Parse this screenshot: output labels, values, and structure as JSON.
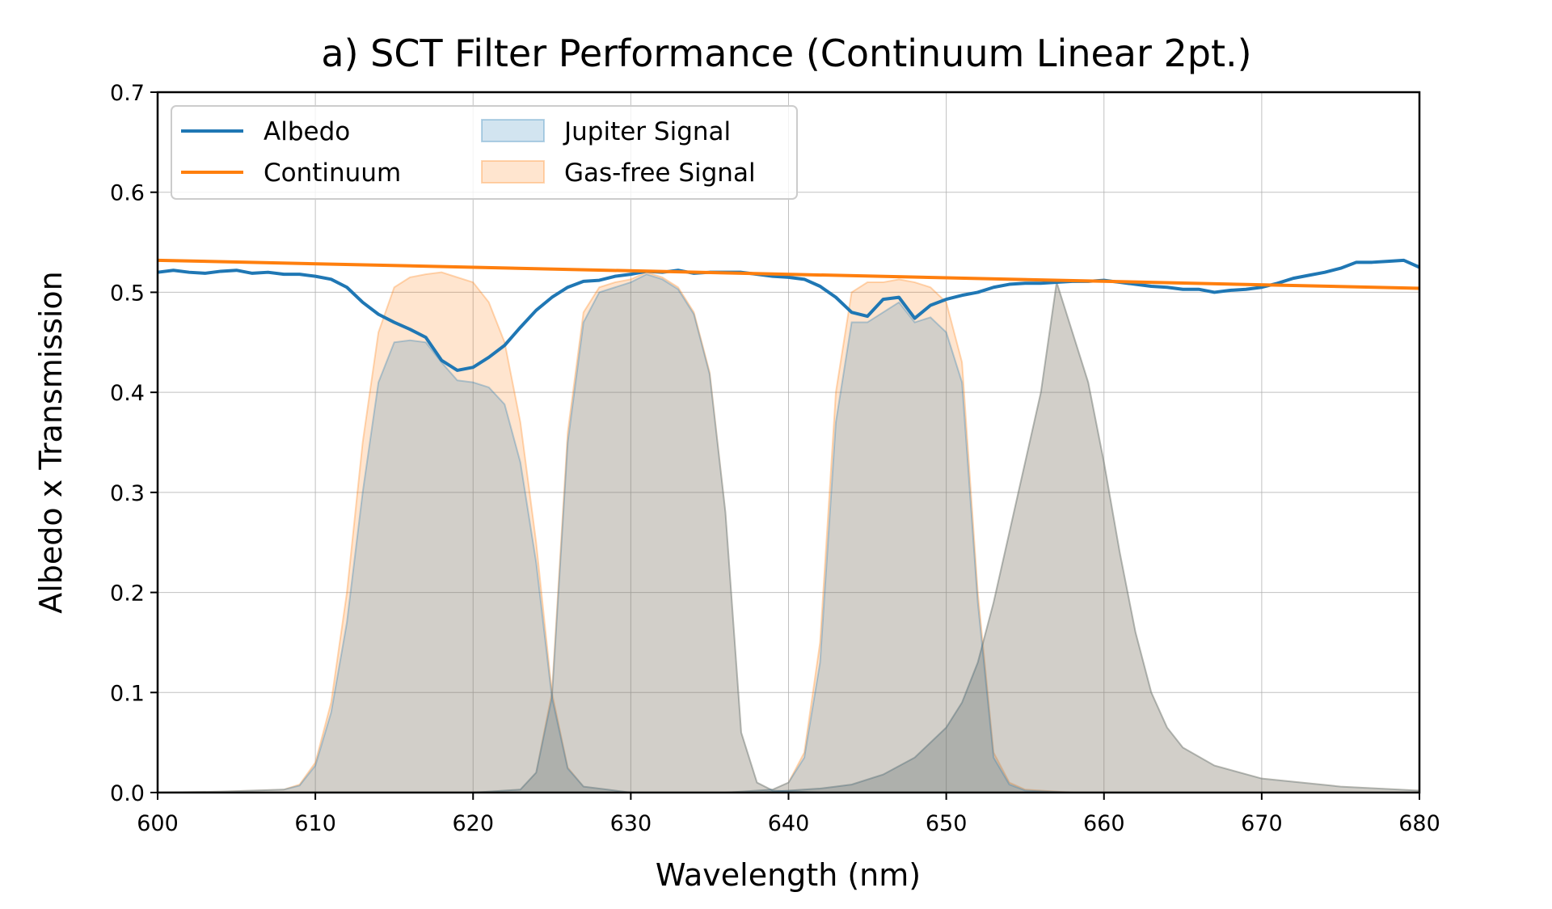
{
  "chart_data": {
    "type": "area",
    "title": "a) SCT Filter Performance (Continuum Linear 2pt.)",
    "xlabel": "Wavelength (nm)",
    "ylabel": "Albedo x Transmission",
    "xlim": [
      600,
      680
    ],
    "ylim": [
      0.0,
      0.7
    ],
    "xticks": [
      600,
      610,
      620,
      630,
      640,
      650,
      660,
      670,
      680
    ],
    "xtick_labels": [
      "600",
      "610",
      "620",
      "630",
      "640",
      "650",
      "660",
      "670",
      "680"
    ],
    "yticks": [
      0.0,
      0.1,
      0.2,
      0.3,
      0.4,
      0.5,
      0.6,
      0.7
    ],
    "ytick_labels": [
      "0.0",
      "0.1",
      "0.2",
      "0.3",
      "0.4",
      "0.5",
      "0.6",
      "0.7"
    ],
    "grid": true,
    "legend_position": "top-left",
    "legend": [
      {
        "label": "Albedo",
        "kind": "line",
        "color": "#1f77b4"
      },
      {
        "label": "Continuum",
        "kind": "line",
        "color": "#ff7f0e"
      },
      {
        "label": "Jupiter Signal",
        "kind": "fill",
        "color": "#1f77b4"
      },
      {
        "label": "Gas-free Signal",
        "kind": "fill",
        "color": "#ff7f0e"
      }
    ],
    "series": [
      {
        "name": "Albedo",
        "kind": "line",
        "color": "#1f77b4",
        "x": [
          600,
          601,
          602,
          603,
          604,
          605,
          606,
          607,
          608,
          609,
          610,
          611,
          612,
          613,
          614,
          615,
          616,
          617,
          618,
          619,
          620,
          621,
          622,
          623,
          624,
          625,
          626,
          627,
          628,
          629,
          630,
          631,
          632,
          633,
          634,
          635,
          636,
          637,
          638,
          639,
          640,
          641,
          642,
          643,
          644,
          645,
          646,
          647,
          648,
          649,
          650,
          651,
          652,
          653,
          654,
          655,
          656,
          657,
          658,
          659,
          660,
          661,
          662,
          663,
          664,
          665,
          666,
          667,
          668,
          669,
          670,
          671,
          672,
          673,
          674,
          675,
          676,
          677,
          678,
          679,
          680
        ],
        "y": [
          0.52,
          0.522,
          0.52,
          0.519,
          0.521,
          0.522,
          0.519,
          0.52,
          0.518,
          0.518,
          0.516,
          0.513,
          0.505,
          0.49,
          0.478,
          0.47,
          0.463,
          0.455,
          0.432,
          0.422,
          0.425,
          0.435,
          0.447,
          0.465,
          0.482,
          0.495,
          0.505,
          0.511,
          0.512,
          0.516,
          0.518,
          0.521,
          0.52,
          0.522,
          0.519,
          0.52,
          0.52,
          0.52,
          0.518,
          0.516,
          0.515,
          0.513,
          0.506,
          0.495,
          0.48,
          0.476,
          0.493,
          0.495,
          0.474,
          0.487,
          0.493,
          0.497,
          0.5,
          0.505,
          0.508,
          0.509,
          0.509,
          0.51,
          0.511,
          0.511,
          0.512,
          0.51,
          0.508,
          0.506,
          0.505,
          0.503,
          0.503,
          0.5,
          0.502,
          0.503,
          0.505,
          0.509,
          0.514,
          0.517,
          0.52,
          0.524,
          0.53,
          0.53,
          0.531,
          0.532,
          0.525
        ]
      },
      {
        "name": "Continuum",
        "kind": "line",
        "color": "#ff7f0e",
        "x": [
          600,
          680
        ],
        "y": [
          0.532,
          0.504
        ]
      },
      {
        "name": "Gas-free Signal",
        "kind": "fill",
        "color": "#ff7f0e",
        "filters": [
          {
            "x": [
              600,
              604,
              608,
              609,
              610,
              611,
              612,
              613,
              614,
              615,
              616,
              617,
              618,
              619,
              620,
              621,
              622,
              623,
              624,
              625,
              626,
              627,
              630
            ],
            "y": [
              0.0,
              0.001,
              0.003,
              0.008,
              0.03,
              0.09,
              0.2,
              0.35,
              0.46,
              0.505,
              0.515,
              0.518,
              0.52,
              0.515,
              0.51,
              0.49,
              0.45,
              0.37,
              0.25,
              0.1,
              0.025,
              0.006,
              0.0
            ]
          },
          {
            "x": [
              620,
              623,
              624,
              625,
              626,
              627,
              628,
              629,
              630,
              631,
              632,
              633,
              634,
              635,
              636,
              637,
              638,
              639,
              642
            ],
            "y": [
              0.0,
              0.003,
              0.02,
              0.1,
              0.36,
              0.48,
              0.505,
              0.51,
              0.513,
              0.52,
              0.515,
              0.505,
              0.48,
              0.42,
              0.28,
              0.06,
              0.01,
              0.002,
              0.0
            ]
          },
          {
            "x": [
              636,
              639,
              640,
              641,
              642,
              643,
              644,
              645,
              646,
              647,
              648,
              649,
              650,
              651,
              652,
              653,
              654,
              655,
              658
            ],
            "y": [
              0.0,
              0.003,
              0.01,
              0.04,
              0.15,
              0.4,
              0.5,
              0.51,
              0.51,
              0.513,
              0.51,
              0.505,
              0.49,
              0.43,
              0.2,
              0.04,
              0.01,
              0.003,
              0.0
            ]
          },
          {
            "x": [
              638,
              642,
              644,
              646,
              648,
              650,
              651,
              652,
              653,
              654,
              655,
              656,
              657,
              658,
              659,
              660,
              661,
              662,
              663,
              664,
              665,
              667,
              670,
              675,
              680
            ],
            "y": [
              0.0,
              0.004,
              0.008,
              0.018,
              0.035,
              0.065,
              0.09,
              0.13,
              0.19,
              0.26,
              0.33,
              0.4,
              0.51,
              0.46,
              0.41,
              0.33,
              0.24,
              0.16,
              0.1,
              0.065,
              0.045,
              0.027,
              0.014,
              0.006,
              0.002
            ]
          }
        ]
      },
      {
        "name": "Jupiter Signal",
        "kind": "fill",
        "color": "#1f77b4",
        "filters": [
          {
            "x": [
              600,
              604,
              608,
              609,
              610,
              611,
              612,
              613,
              614,
              615,
              616,
              617,
              618,
              619,
              620,
              621,
              622,
              623,
              624,
              625,
              626,
              627,
              630
            ],
            "y": [
              0.0,
              0.001,
              0.003,
              0.007,
              0.027,
              0.08,
              0.17,
              0.3,
              0.41,
              0.45,
              0.452,
              0.45,
              0.43,
              0.412,
              0.41,
              0.405,
              0.388,
              0.33,
              0.23,
              0.095,
              0.024,
              0.006,
              0.0
            ]
          },
          {
            "x": [
              620,
              623,
              624,
              625,
              626,
              627,
              628,
              629,
              630,
              631,
              632,
              633,
              634,
              635,
              636,
              637,
              638,
              639,
              642
            ],
            "y": [
              0.0,
              0.003,
              0.02,
              0.095,
              0.35,
              0.47,
              0.5,
              0.505,
              0.51,
              0.518,
              0.513,
              0.503,
              0.478,
              0.418,
              0.28,
              0.06,
              0.01,
              0.002,
              0.0
            ]
          },
          {
            "x": [
              636,
              639,
              640,
              641,
              642,
              643,
              644,
              645,
              646,
              647,
              648,
              649,
              650,
              651,
              652,
              653,
              654,
              655,
              658
            ],
            "y": [
              0.0,
              0.003,
              0.01,
              0.035,
              0.13,
              0.37,
              0.47,
              0.47,
              0.48,
              0.49,
              0.47,
              0.475,
              0.46,
              0.41,
              0.19,
              0.035,
              0.008,
              0.002,
              0.0
            ]
          },
          {
            "x": [
              638,
              642,
              644,
              646,
              648,
              650,
              651,
              652,
              653,
              654,
              655,
              656,
              657,
              658,
              659,
              660,
              661,
              662,
              663,
              664,
              665,
              667,
              670,
              675,
              680
            ],
            "y": [
              0.0,
              0.004,
              0.008,
              0.018,
              0.035,
              0.065,
              0.09,
              0.13,
              0.19,
              0.26,
              0.33,
              0.4,
              0.51,
              0.46,
              0.41,
              0.33,
              0.24,
              0.16,
              0.1,
              0.065,
              0.045,
              0.027,
              0.014,
              0.006,
              0.002
            ]
          }
        ]
      }
    ]
  }
}
